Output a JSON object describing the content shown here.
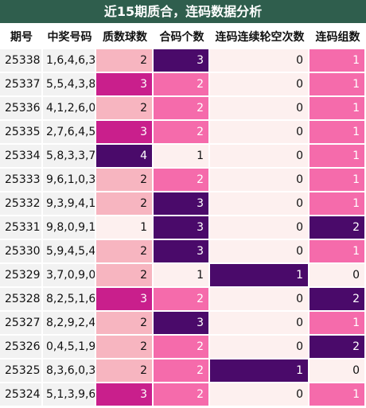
{
  "title": "近15期质合，连码数据分析",
  "headers": [
    "期号",
    "中奖号码",
    "质数球数",
    "合码个数",
    "连码连续轮空次数",
    "连码组数"
  ],
  "colors": {
    "title_bg": "#2f5e4d",
    "very_light": "#fdf0ef",
    "light_pink": "#f7b5c0",
    "pink": "#f56bab",
    "magenta": "#c91f8c",
    "dark_purple": "#4a0a6a"
  },
  "rows": [
    {
      "period": "25338",
      "numbers": "1,6,4,6,3",
      "prime": "2",
      "composite": "3",
      "gap": "0",
      "groups": "1"
    },
    {
      "period": "25337",
      "numbers": "5,5,4,3,8",
      "prime": "3",
      "composite": "2",
      "gap": "0",
      "groups": "1"
    },
    {
      "period": "25336",
      "numbers": "4,1,2,6,0",
      "prime": "2",
      "composite": "2",
      "gap": "0",
      "groups": "1"
    },
    {
      "period": "25335",
      "numbers": "2,7,6,4,5",
      "prime": "3",
      "composite": "2",
      "gap": "0",
      "groups": "1"
    },
    {
      "period": "25334",
      "numbers": "5,8,3,3,7",
      "prime": "4",
      "composite": "1",
      "gap": "0",
      "groups": "1"
    },
    {
      "period": "25333",
      "numbers": "9,6,1,0,3",
      "prime": "2",
      "composite": "2",
      "gap": "0",
      "groups": "1"
    },
    {
      "period": "25332",
      "numbers": "9,3,9,4,1",
      "prime": "2",
      "composite": "3",
      "gap": "0",
      "groups": "1"
    },
    {
      "period": "25331",
      "numbers": "9,8,0,9,1",
      "prime": "1",
      "composite": "3",
      "gap": "0",
      "groups": "2"
    },
    {
      "period": "25330",
      "numbers": "5,9,4,5,4",
      "prime": "2",
      "composite": "3",
      "gap": "0",
      "groups": "1"
    },
    {
      "period": "25329",
      "numbers": "3,7,0,9,0",
      "prime": "2",
      "composite": "1",
      "gap": "1",
      "groups": "0"
    },
    {
      "period": "25328",
      "numbers": "8,2,5,1,6",
      "prime": "3",
      "composite": "2",
      "gap": "0",
      "groups": "2"
    },
    {
      "period": "25327",
      "numbers": "8,2,9,2,4",
      "prime": "2",
      "composite": "3",
      "gap": "0",
      "groups": "1"
    },
    {
      "period": "25326",
      "numbers": "0,4,5,1,9",
      "prime": "2",
      "composite": "2",
      "gap": "0",
      "groups": "2"
    },
    {
      "period": "25325",
      "numbers": "8,3,6,0,3",
      "prime": "2",
      "composite": "2",
      "gap": "1",
      "groups": "0"
    },
    {
      "period": "25324",
      "numbers": "5,1,3,9,6",
      "prime": "3",
      "composite": "2",
      "gap": "0",
      "groups": "1"
    }
  ]
}
